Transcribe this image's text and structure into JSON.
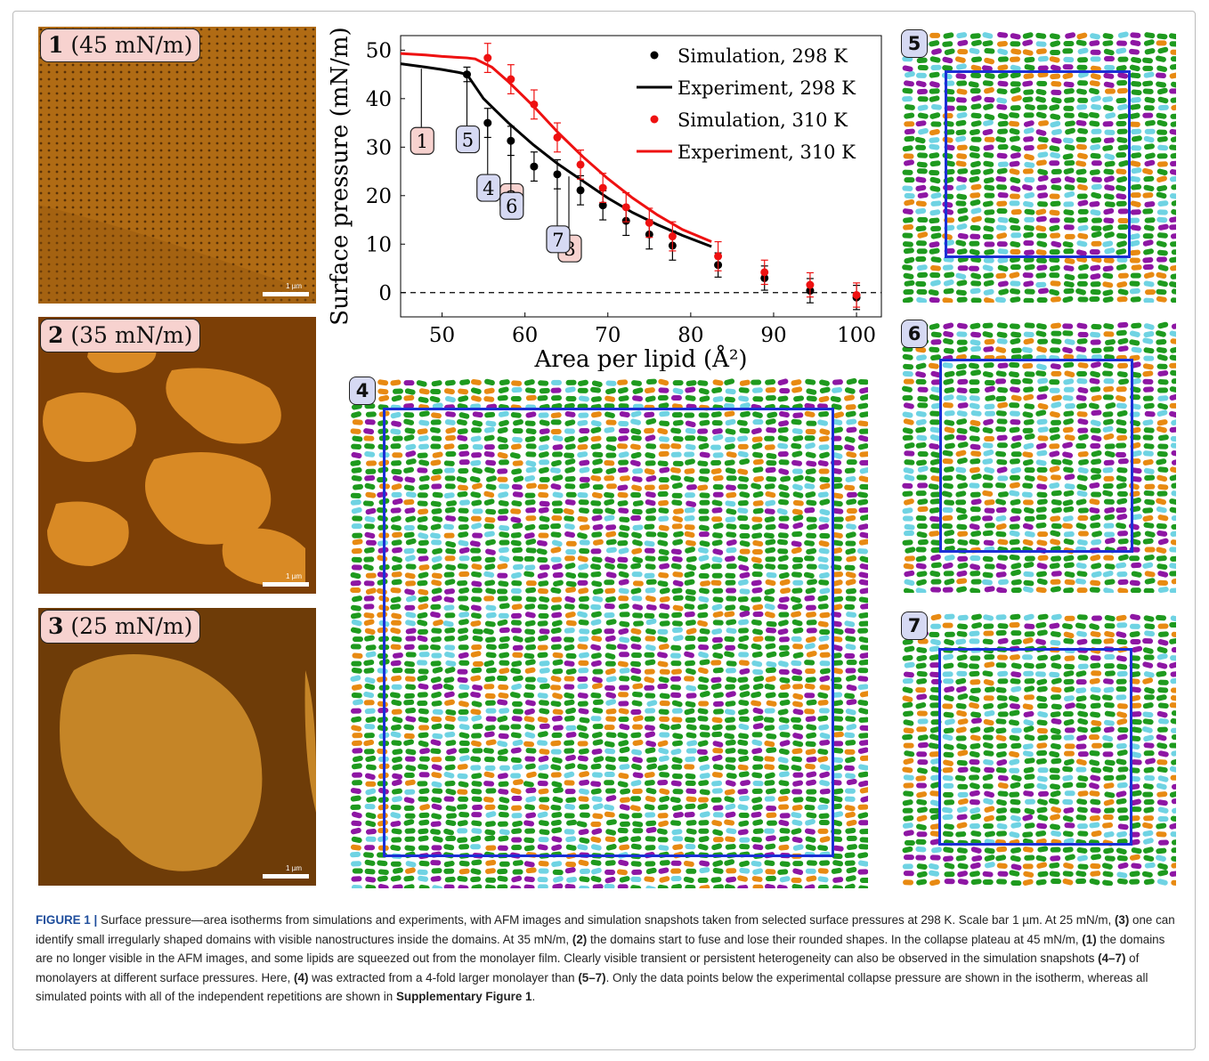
{
  "afm_panels": [
    {
      "num": "1",
      "label": " (45 mN/m)",
      "scale": "1 µm"
    },
    {
      "num": "2",
      "label": " (35 mN/m)",
      "scale": "1 µm"
    },
    {
      "num": "3",
      "label": " (25 mN/m)",
      "scale": "1 µm"
    }
  ],
  "snapshots": [
    {
      "num": "4"
    },
    {
      "num": "5"
    },
    {
      "num": "6"
    },
    {
      "num": "7"
    }
  ],
  "colors": {
    "sim_298": "#000000",
    "sim_310": "#ee1111",
    "callout_afm": "#f7d2cf",
    "callout_sim": "#d6d9f3",
    "box": "#1b2fd6",
    "lipid_green": "#1e9a1e",
    "lipid_orange": "#e88a12",
    "lipid_purple": "#8e16a4",
    "lipid_cyan": "#6fd3e3"
  },
  "chart_data": {
    "type": "line",
    "xlabel": "Area per lipid (Å²)",
    "ylabel": "Surface pressure (mN/m)",
    "xlim": [
      45,
      103
    ],
    "ylim": [
      -5,
      53
    ],
    "xticks": [
      50,
      60,
      70,
      80,
      90,
      100
    ],
    "yticks": [
      0,
      10,
      20,
      30,
      40,
      50
    ],
    "zero_line": "dashed",
    "legend_position": "top-right",
    "series": [
      {
        "name": "Simulation, 298 K",
        "kind": "points",
        "color": "#000000",
        "x": [
          53,
          55.5,
          58.3,
          61.1,
          63.9,
          66.7,
          69.4,
          72.2,
          75,
          77.8,
          83.3,
          88.9,
          94.4,
          100
        ],
        "y": [
          45,
          35,
          31.3,
          26,
          24.4,
          21.1,
          18,
          14.8,
          12,
          9.7,
          5.7,
          3,
          0.4,
          -1
        ],
        "err": [
          1.5,
          3,
          3,
          3,
          3,
          3,
          3,
          3,
          3,
          3,
          2.5,
          2.5,
          2.5,
          2.5
        ]
      },
      {
        "name": "Experiment, 298 K",
        "kind": "line",
        "color": "#000000",
        "x": [
          45,
          48,
          50,
          52,
          53,
          55,
          58,
          61,
          64,
          67,
          70,
          73,
          76,
          79,
          82.5
        ],
        "y": [
          47.2,
          46.5,
          46,
          45.4,
          45,
          40,
          35,
          30.5,
          26.5,
          23,
          19.5,
          16.5,
          14,
          11.8,
          9.5
        ]
      },
      {
        "name": "Simulation, 310 K",
        "kind": "points",
        "color": "#ee1111",
        "x": [
          55.5,
          58.3,
          61.1,
          63.9,
          66.7,
          69.4,
          72.2,
          75,
          77.8,
          83.3,
          88.9,
          94.4,
          100
        ],
        "y": [
          48.4,
          44,
          38.8,
          32,
          26.4,
          21.6,
          17.6,
          14.4,
          11.6,
          7.5,
          4.2,
          1.6,
          -0.5
        ],
        "err": [
          3,
          3,
          3,
          3,
          3,
          3,
          3,
          3,
          3,
          3,
          2.5,
          2.5,
          2.5
        ]
      },
      {
        "name": "Experiment, 310 K",
        "kind": "line",
        "color": "#ee1111",
        "x": [
          45,
          48,
          50,
          53,
          54,
          56,
          58,
          61,
          64,
          67,
          70,
          73,
          76,
          79,
          82.5
        ],
        "y": [
          49.3,
          49,
          48.7,
          48.4,
          48.2,
          46.5,
          43.5,
          38.5,
          33,
          28,
          23.5,
          19.5,
          16,
          13,
          10.5
        ]
      }
    ],
    "callouts": [
      {
        "label": "1",
        "type": "afm",
        "target": [
          47.5,
          46.9
        ]
      },
      {
        "label": "2",
        "type": "afm",
        "target": [
          58.3,
          35.3
        ]
      },
      {
        "label": "3",
        "type": "afm",
        "target": [
          65.3,
          24.7
        ]
      },
      {
        "label": "4",
        "type": "sim",
        "target": [
          55.5,
          35
        ]
      },
      {
        "label": "5",
        "type": "sim",
        "target": [
          53,
          45
        ]
      },
      {
        "label": "6",
        "type": "sim",
        "target": [
          58.3,
          31.3
        ]
      },
      {
        "label": "7",
        "type": "sim",
        "target": [
          63.9,
          24.4
        ]
      }
    ]
  },
  "caption": {
    "figure_label": "FIGURE 1 |",
    "t1": " Surface pressure—area isotherms from simulations and experiments, with AFM images and simulation snapshots taken from selected surface pressures at 298 K. Scale bar 1 µm. At 25 mN/m, ",
    "b1": "(3)",
    "t2": " one can identify small irregularly shaped domains with visible nanostructures inside the domains. At 35 mN/m, ",
    "b2": "(2)",
    "t3": " the domains start to fuse and lose their rounded shapes. In the collapse plateau at 45 mN/m, ",
    "b3": "(1)",
    "t4": " the domains are no longer visible in the AFM images, and some lipids are squeezed out from the monolayer film. Clearly visible transient or persistent heterogeneity can also be observed in the simulation snapshots ",
    "b4": "(4–7)",
    "t5": " of monolayers at different surface pressures. Here, ",
    "b5": "(4)",
    "t6": " was extracted from a 4-fold larger monolayer than ",
    "b6": "(5–7)",
    "t7": ". Only the data points below the experimental collapse pressure are shown in the isotherm, whereas all simulated points with all of the independent repetitions are shown in ",
    "b7": "Supplementary Figure 1",
    "t8": "."
  }
}
